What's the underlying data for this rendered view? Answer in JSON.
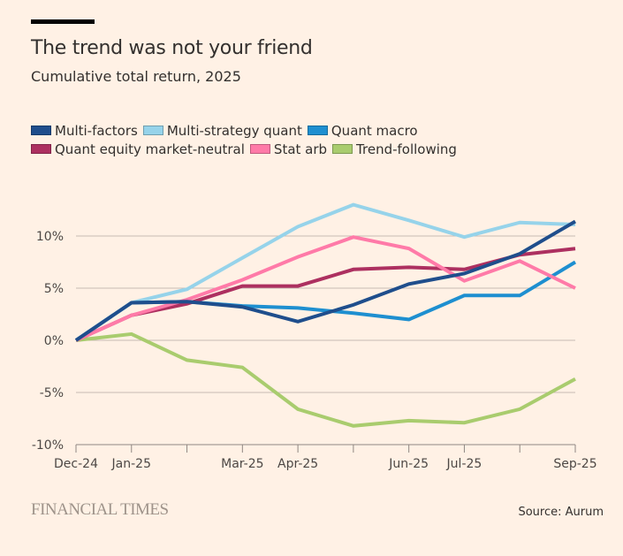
{
  "header": {
    "title": "The trend was not your friend",
    "subtitle": "Cumulative total return, 2025"
  },
  "footer": {
    "brand": "FINANCIAL TIMES",
    "source": "Source: Aurum"
  },
  "chart_data": {
    "type": "line",
    "title": "The trend was not your friend",
    "subtitle": "Cumulative total return, 2025",
    "xlabel": "",
    "ylabel": "",
    "x": [
      "Dec-24",
      "Jan-25",
      "Feb-25",
      "Mar-25",
      "Apr-25",
      "May-25",
      "Jun-25",
      "Jul-25",
      "Aug-25",
      "Sep-25"
    ],
    "x_tick_labels": [
      "Dec-24",
      "Jan-25",
      "",
      "Mar-25",
      "Apr-25",
      "",
      "Jun-25",
      "Jul-25",
      "",
      "Sep-25"
    ],
    "ylim": [
      -10,
      13
    ],
    "y_ticks": [
      10,
      5,
      0,
      -5,
      -10
    ],
    "y_tick_labels": [
      "10%",
      "5%",
      "0%",
      "-5%",
      "-10%"
    ],
    "grid": true,
    "legend_position": "top-left",
    "series": [
      {
        "name": "Multi-factors",
        "color": "#1f4e8c",
        "values": [
          0,
          3.6,
          3.7,
          3.2,
          1.8,
          3.4,
          5.4,
          6.4,
          8.3,
          11.4
        ]
      },
      {
        "name": "Multi-strategy quant",
        "color": "#96d3ea",
        "values": [
          0,
          3.6,
          4.9,
          7.9,
          10.9,
          13.0,
          11.5,
          9.9,
          11.3,
          11.1
        ]
      },
      {
        "name": "Quant macro",
        "color": "#1e8fd0",
        "values": [
          0,
          3.6,
          3.7,
          3.3,
          3.1,
          2.6,
          2.0,
          4.3,
          4.3,
          7.5
        ]
      },
      {
        "name": "Quant equity market-neutral",
        "color": "#ad3060",
        "values": [
          0,
          2.4,
          3.5,
          5.2,
          5.2,
          6.8,
          7.0,
          6.8,
          8.2,
          8.8
        ]
      },
      {
        "name": "Stat arb",
        "color": "#ff7aa8",
        "values": [
          0,
          2.4,
          3.9,
          5.8,
          8.0,
          9.9,
          8.8,
          5.7,
          7.6,
          5.0
        ]
      },
      {
        "name": "Trend-following",
        "color": "#a9cc6e",
        "values": [
          0,
          0.6,
          -1.9,
          -2.6,
          -6.6,
          -8.2,
          -7.7,
          -7.9,
          -6.6,
          -3.7
        ]
      }
    ],
    "legend_rows": [
      [
        0,
        1,
        2
      ],
      [
        3,
        4,
        5
      ]
    ]
  }
}
